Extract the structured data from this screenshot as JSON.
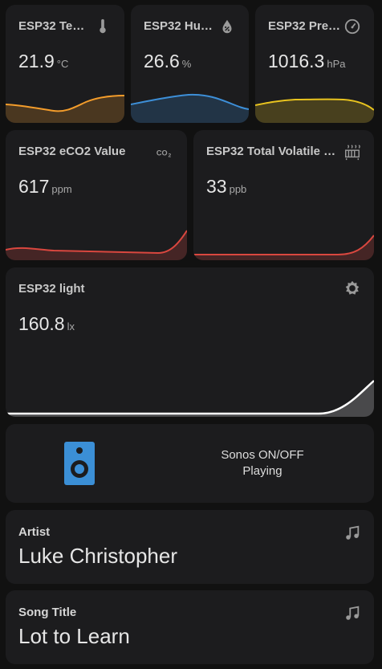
{
  "sensors": [
    {
      "name": "ESP32 Te…",
      "value": "21.9",
      "unit": "°C",
      "icon": "thermometer-icon"
    },
    {
      "name": "ESP32 Hu…",
      "value": "26.6",
      "unit": "%",
      "icon": "water-percent-icon"
    },
    {
      "name": "ESP32 Pre…",
      "value": "1016.3",
      "unit": "hPa",
      "icon": "gauge-icon"
    },
    {
      "name": "ESP32 eCO2 Value",
      "value": "617",
      "unit": "ppm",
      "icon": "co2-icon"
    },
    {
      "name": "ESP32 Total Volatile …",
      "value": "33",
      "unit": "ppb",
      "icon": "radiator-icon"
    },
    {
      "name": "ESP32 light",
      "value": "160.8",
      "unit": "lx",
      "icon": "brightness-icon"
    }
  ],
  "sonos": {
    "name": "Sonos ON/OFF",
    "state": "Playing",
    "icon": "speaker-icon",
    "color": "#3b8fd6"
  },
  "artist": {
    "label": "Artist",
    "value": "Luke Christopher",
    "icon": "music-note-icon"
  },
  "song": {
    "label": "Song Title",
    "value": "Lot to Learn",
    "icon": "music-note-icon"
  },
  "colors": {
    "temperature": "#f39c2b",
    "humidity": "#3d8fd8",
    "pressure": "#e8c31f",
    "air_quality": "#d9473f",
    "light": "#ffffff"
  }
}
